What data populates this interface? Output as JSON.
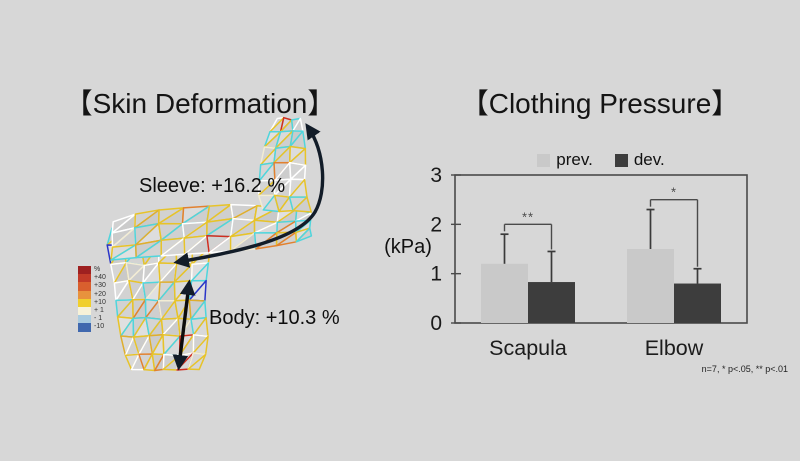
{
  "left_panel": {
    "title": "【Skin Deformation】",
    "sleeve_label": "Sleeve: +16.2 %",
    "body_label": "Body: +10.3 %",
    "colorbar": {
      "rows": [
        {
          "color": "#9e2020",
          "label": "%"
        },
        {
          "color": "#c23a28",
          "label": "+40"
        },
        {
          "color": "#d95f2e",
          "label": "+30"
        },
        {
          "color": "#e8923d",
          "label": "+20"
        },
        {
          "color": "#f0cf2c",
          "label": "+10"
        },
        {
          "color": "#f7f2d8",
          "label": "+ 1"
        },
        {
          "color": "#a9cbe0",
          "label": "- 1"
        },
        {
          "color": "#4068ae",
          "label": "-10"
        }
      ]
    },
    "mesh_palette": [
      {
        "color": "#e7c329",
        "w": 40
      },
      {
        "color": "#4fd5dc",
        "w": 22
      },
      {
        "color": "#ffffff",
        "w": 15
      },
      {
        "color": "#f2ecd4",
        "w": 10
      },
      {
        "color": "#dfae2e",
        "w": 6
      },
      {
        "color": "#e2812f",
        "w": 3
      },
      {
        "color": "#cf2d1f",
        "w": 2
      },
      {
        "color": "#2b35c8",
        "w": 2
      }
    ]
  },
  "right_panel": {
    "title": "【Clothing Pressure】"
  },
  "chart_data": {
    "type": "bar",
    "title": "【Clothing Pressure】",
    "categories": [
      "Scapula",
      "Elbow"
    ],
    "series": [
      {
        "name": "prev.",
        "values": [
          1.2,
          1.5
        ],
        "error_top": [
          1.8,
          2.3
        ],
        "color": "#c9c9c9"
      },
      {
        "name": "dev.",
        "values": [
          0.83,
          0.8
        ],
        "error_top": [
          1.45,
          1.1
        ],
        "color": "#3d3d3d"
      }
    ],
    "ylabel": "(kPa)",
    "ylim": [
      0,
      3
    ],
    "yticks": [
      "0",
      "1",
      "2",
      "3"
    ],
    "grid": false,
    "legend_position": "top",
    "significance": [
      {
        "category": "Scapula",
        "marker": "**",
        "bracket_y": 2.0
      },
      {
        "category": "Elbow",
        "marker": "*",
        "bracket_y": 2.5
      }
    ],
    "note": "n=7,  * p<.05, ** p<.01"
  }
}
